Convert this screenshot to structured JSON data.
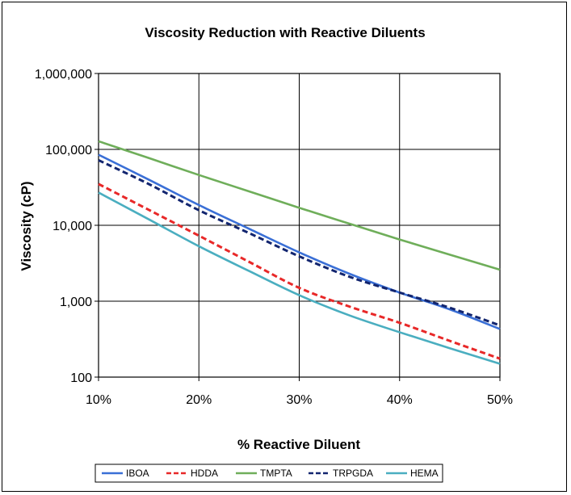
{
  "chart_data": {
    "type": "line",
    "title": "Viscosity Reduction with Reactive Diluents",
    "xlabel": "% Reactive Diluent",
    "ylabel": "Viscosity (cP)",
    "x": [
      10,
      15,
      20,
      25,
      30,
      35,
      40,
      45,
      50
    ],
    "x_tick_values": [
      10,
      20,
      30,
      40,
      50
    ],
    "x_tick_labels": [
      "10%",
      "20%",
      "30%",
      "40%",
      "50%"
    ],
    "y_scale": "log",
    "ylim": [
      100,
      1000000
    ],
    "y_tick_values": [
      100,
      1000,
      10000,
      100000,
      1000000
    ],
    "y_tick_labels": [
      "100",
      "1,000",
      "10,000",
      "100,000",
      "1,000,000"
    ],
    "grid": true,
    "legend_position": "bottom",
    "series": [
      {
        "name": "IBOA",
        "color": "#3a6fd6",
        "dash": "solid",
        "values": [
          85000,
          40000,
          18500,
          9000,
          4400,
          2300,
          1300,
          780,
          430
        ]
      },
      {
        "name": "HDDA",
        "color": "#e82828",
        "dash": "dashed",
        "values": [
          35000,
          16000,
          7300,
          3300,
          1500,
          850,
          520,
          300,
          175
        ]
      },
      {
        "name": "TMPTA",
        "color": "#6fae5a",
        "dash": "solid",
        "values": [
          128000,
          77000,
          46000,
          28000,
          17000,
          10500,
          6500,
          4100,
          2600
        ]
      },
      {
        "name": "TRPGDA",
        "color": "#12256f",
        "dash": "dashed",
        "values": [
          72000,
          35000,
          15800,
          7900,
          3900,
          2100,
          1300,
          820,
          480
        ]
      },
      {
        "name": "HEMA",
        "color": "#4aaec0",
        "dash": "solid",
        "values": [
          27000,
          12000,
          5300,
          2500,
          1200,
          650,
          390,
          240,
          150
        ]
      }
    ]
  }
}
